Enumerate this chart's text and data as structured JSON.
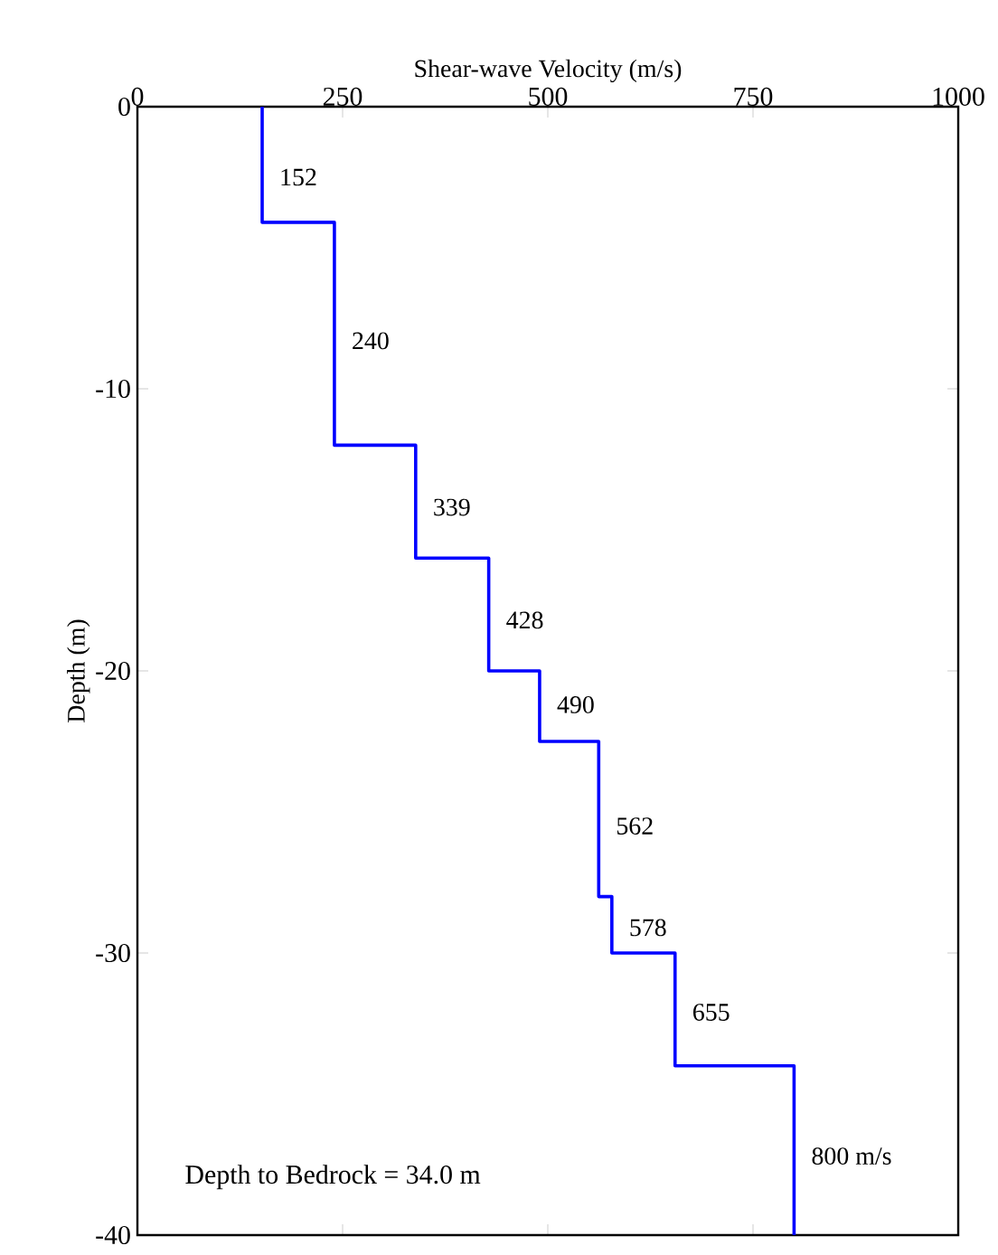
{
  "chart_data": {
    "type": "line",
    "xlabel": "Shear-wave Velocity (m/s)",
    "ylabel": "Depth (m)",
    "xlim": [
      0,
      1000
    ],
    "xticks": [
      0,
      250,
      500,
      750,
      1000
    ],
    "ylim": [
      -40,
      0
    ],
    "yticks": [
      0,
      -10,
      -20,
      -30,
      -40
    ],
    "series": [
      {
        "color": "#0000ff",
        "x": [
          152,
          152,
          240,
          240,
          339,
          339,
          428,
          428,
          490,
          490,
          562,
          562,
          578,
          578,
          655,
          655,
          800,
          800
        ],
        "values": [
          0,
          -4.1,
          -4.1,
          -12,
          -12,
          -16,
          -16,
          -20,
          -20,
          -22.5,
          -22.5,
          -28,
          -28,
          -30,
          -30,
          -34,
          -34,
          -40
        ]
      }
    ],
    "annotations": [
      {
        "text": "152",
        "x": 152,
        "y": -2.5
      },
      {
        "text": "240",
        "x": 240,
        "y": -8.3
      },
      {
        "text": "339",
        "x": 339,
        "y": -14.2
      },
      {
        "text": "428",
        "x": 428,
        "y": -18.2
      },
      {
        "text": "490",
        "x": 490,
        "y": -21.2
      },
      {
        "text": "562",
        "x": 562,
        "y": -25.5
      },
      {
        "text": "578",
        "x": 578,
        "y": -29.1
      },
      {
        "text": "655",
        "x": 655,
        "y": -32.1
      },
      {
        "text": "800 m/s",
        "x": 800,
        "y": -37.2
      },
      "Depth to Bedrock = 34.0 m"
    ]
  }
}
